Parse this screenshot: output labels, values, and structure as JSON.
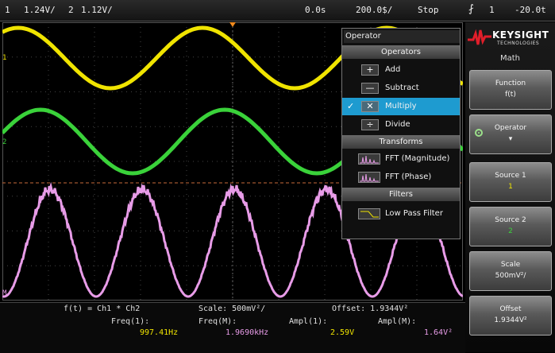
{
  "status_bar": {
    "ch1_num": "1",
    "ch1_scale": "1.24V/",
    "ch2_num": "2",
    "ch2_scale": "1.12V/",
    "time_delay": "0.0s",
    "time_scale": "200.0$/",
    "run_state": "Stop",
    "trigger_icon": "trigger-edge-icon",
    "trigger_source": "1",
    "trigger_level": "-20.0t"
  },
  "screen": {
    "ch1_marker": "1",
    "ch2_marker": "2",
    "math_marker": "M"
  },
  "operator_menu": {
    "title": "Operator",
    "section_operators": "Operators",
    "items_operators": [
      {
        "icon": "+",
        "label": "Add",
        "selected": false
      },
      {
        "icon": "—",
        "label": "Subtract",
        "selected": false
      },
      {
        "icon": "✕",
        "label": "Multiply",
        "selected": true
      },
      {
        "icon": "÷",
        "label": "Divide",
        "selected": false
      }
    ],
    "section_transforms": "Transforms",
    "items_transforms": [
      {
        "icon": "fft-icon",
        "label": "FFT (Magnitude)"
      },
      {
        "icon": "fft-icon",
        "label": "FFT (Phase)"
      }
    ],
    "section_filters": "Filters",
    "items_filters": [
      {
        "icon": "lowpass-icon",
        "label": "Low Pass Filter"
      }
    ],
    "check_mark": "✓"
  },
  "sidebar": {
    "brand": "KEYSIGHT",
    "brand_sub": "TECHNOLOGIES",
    "menu_title": "Math",
    "softkeys": [
      {
        "label": "Function",
        "value": "f(t)"
      },
      {
        "label": "Operator",
        "value": "▾"
      },
      {
        "label": "Source 1",
        "value": "1"
      },
      {
        "label": "Source 2",
        "value": "2"
      },
      {
        "label": "Scale",
        "value": "500mV²/"
      },
      {
        "label": "Offset",
        "value": "1.9344V²"
      }
    ]
  },
  "bottom_bar": {
    "formula": "f(t) = Ch1 * Ch2",
    "scale": "Scale: 500mV²/",
    "offset": "Offset: 1.9344V²",
    "meas_labels": [
      "Freq(1):",
      "Freq(M):",
      "Ampl(1):",
      "Ampl(M):"
    ],
    "meas_values": [
      "997.41Hz",
      "1.9690kHz",
      "2.59V",
      "1.64V²"
    ]
  },
  "colors": {
    "ch1": "#f0e400",
    "ch2": "#3ad23a",
    "math": "#e89ce8",
    "highlight": "#1e9bd0"
  }
}
